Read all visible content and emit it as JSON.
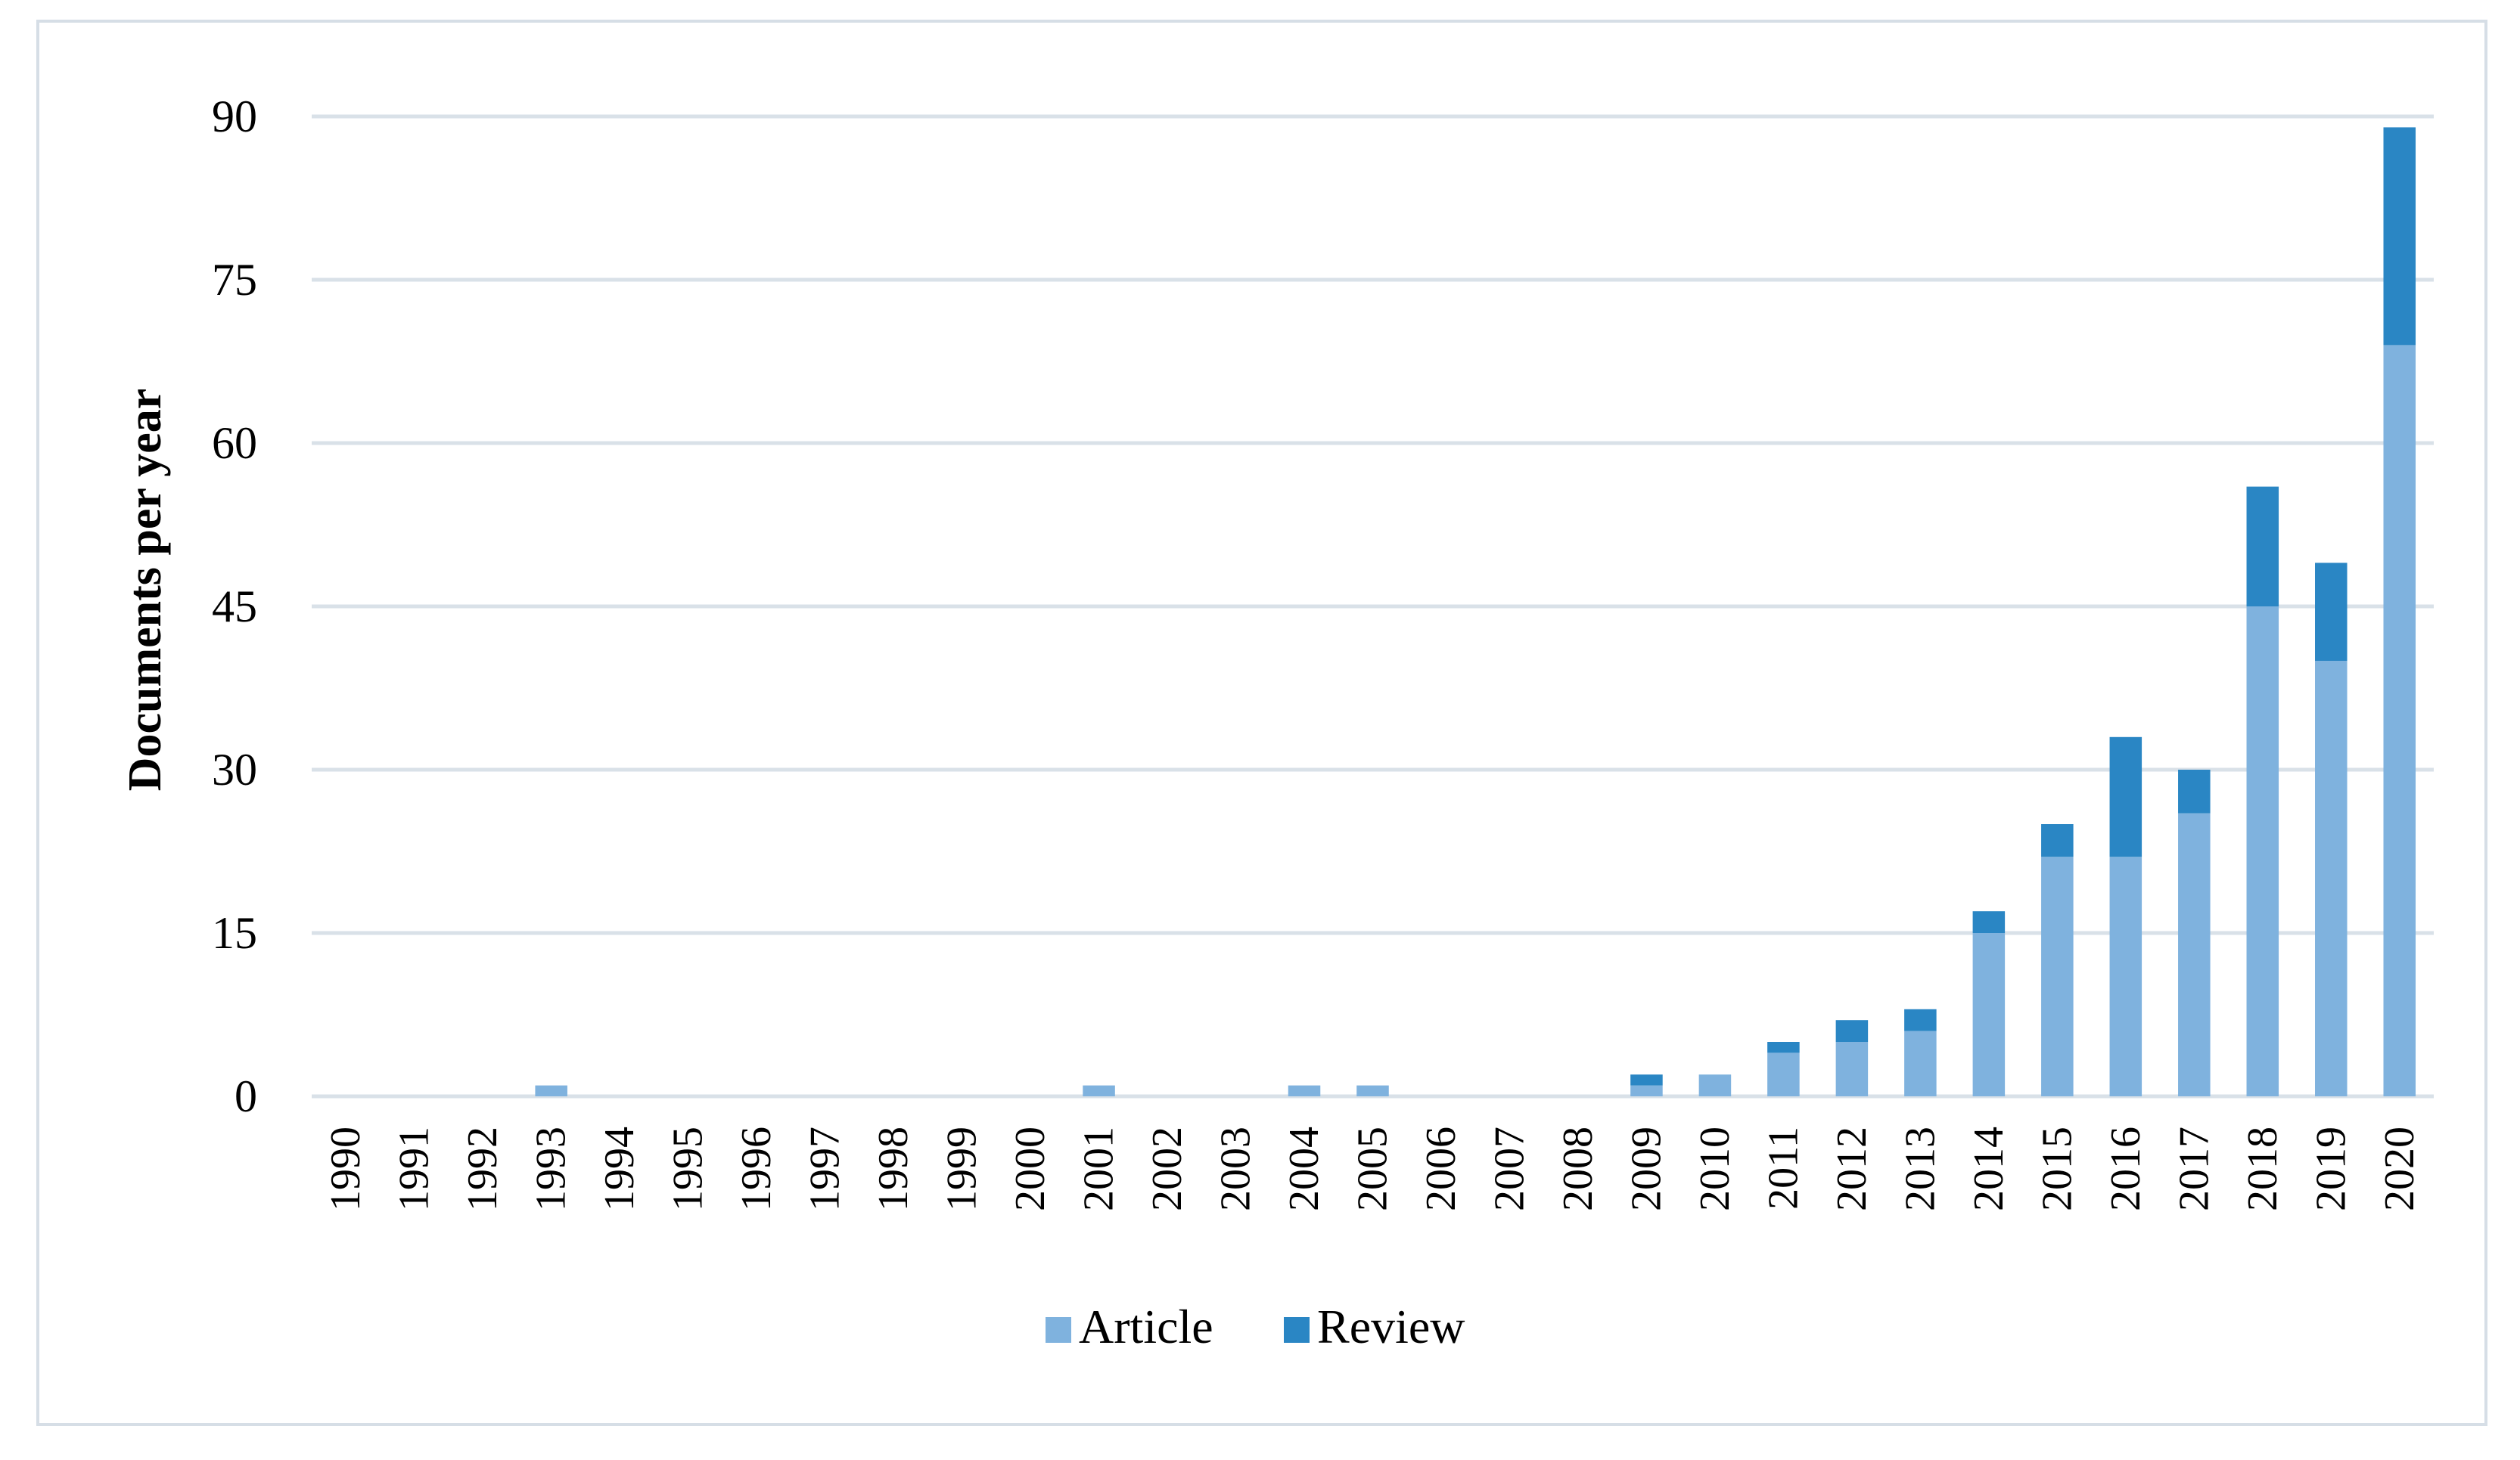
{
  "chart_data": {
    "type": "bar",
    "stacked": true,
    "title": "",
    "xlabel": "",
    "ylabel": "Documents per year",
    "ylim": [
      0,
      90
    ],
    "yticks": [
      0,
      15,
      30,
      45,
      60,
      75,
      90
    ],
    "grid": true,
    "legend_position": "bottom",
    "categories": [
      "1990",
      "1991",
      "1992",
      "1993",
      "1994",
      "1995",
      "1996",
      "1997",
      "1998",
      "1999",
      "2000",
      "2001",
      "2002",
      "2003",
      "2004",
      "2005",
      "2006",
      "2007",
      "2008",
      "2009",
      "2010",
      "2011",
      "2012",
      "2013",
      "2014",
      "2015",
      "2016",
      "2017",
      "2018",
      "2019",
      "2020"
    ],
    "series": [
      {
        "name": "Article",
        "color": "#7fb2de",
        "values": [
          0,
          0,
          0,
          1,
          0,
          0,
          0,
          0,
          0,
          0,
          0,
          1,
          0,
          0,
          1,
          1,
          0,
          0,
          0,
          1,
          2,
          4,
          5,
          6,
          15,
          22,
          22,
          26,
          45,
          40,
          69
        ]
      },
      {
        "name": "Review",
        "color": "#2a86c4",
        "values": [
          0,
          0,
          0,
          0,
          0,
          0,
          0,
          0,
          0,
          0,
          0,
          0,
          0,
          0,
          0,
          0,
          0,
          0,
          0,
          1,
          0,
          1,
          2,
          2,
          2,
          3,
          11,
          4,
          11,
          9,
          20
        ]
      }
    ]
  }
}
